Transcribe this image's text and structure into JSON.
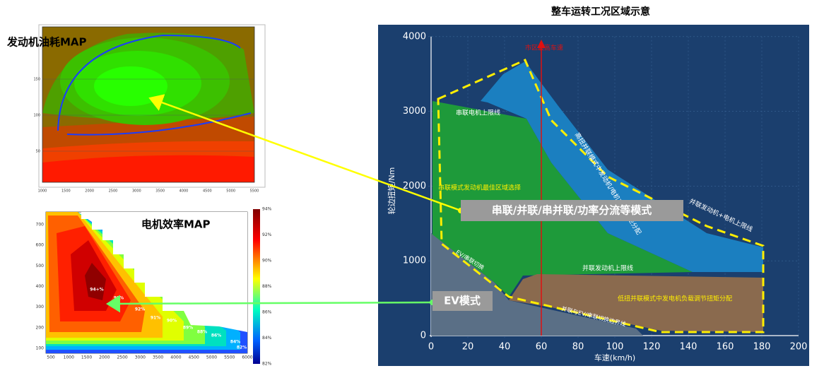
{
  "engine_map": {
    "title": "发动机油耗MAP",
    "xticks": [
      1000,
      1500,
      2000,
      2500,
      3000,
      3500,
      4000,
      4500,
      5000,
      5500
    ],
    "yticks": [
      50,
      100,
      150
    ]
  },
  "motor_map": {
    "title": "电机效率MAP",
    "xticks": [
      500,
      1000,
      1500,
      2000,
      2500,
      3000,
      3500,
      4000,
      4500,
      5000,
      5500,
      6000
    ],
    "yticks": [
      100,
      200,
      300,
      400,
      500,
      600,
      700
    ],
    "colorbar": [
      "94%",
      "92%",
      "90%",
      "88%",
      "86%",
      "84%",
      "82%"
    ],
    "contours": [
      "94+%",
      "93%",
      "92%",
      "91%",
      "90%",
      "89%",
      "88%",
      "86%",
      "84%",
      "82%"
    ]
  },
  "vehicle_map": {
    "title": "整车运转工况区域示意",
    "x_label": "车速(km/h)",
    "y_label": "轮边扭矩/Nm",
    "xticks": [
      0,
      20,
      40,
      60,
      80,
      100,
      120,
      140,
      160,
      180,
      200
    ],
    "yticks": [
      0,
      1000,
      2000,
      3000,
      4000
    ],
    "annotations": [
      "市区最高车速",
      "串联电机上限线",
      "串联模式发动机最佳区域选择",
      "高扭并联模式中发动机/电机功率/扭矩分配",
      "并联发动机+电机上限线",
      "并联发动机上限线",
      "低扭并联模式中发电机负载调节扭矩分配",
      "EV/串联切换",
      "并联与EV/串联切换边界线"
    ]
  },
  "callouts": [
    "串联/并联/串并联/功率分流等模式",
    "EV模式"
  ]
}
